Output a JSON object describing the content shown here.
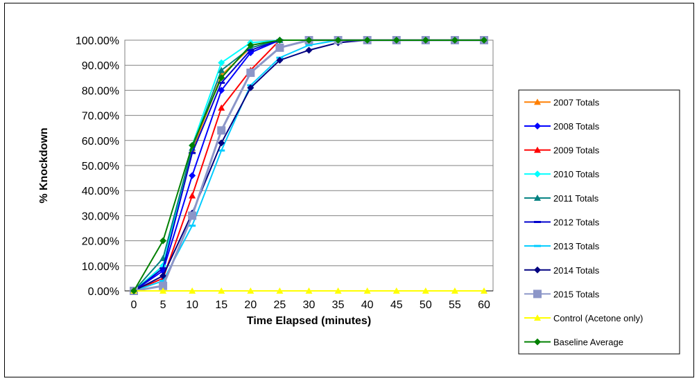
{
  "chart_data": {
    "type": "line",
    "title": "",
    "xlabel": "Time Elapsed (minutes)",
    "ylabel": "% Knockdown",
    "x": [
      0,
      5,
      10,
      15,
      20,
      25,
      30,
      35,
      40,
      45,
      50,
      55,
      60
    ],
    "x_tick_labels": [
      "0",
      "5",
      "10",
      "15",
      "20",
      "25",
      "30",
      "35",
      "40",
      "45",
      "50",
      "55",
      "60"
    ],
    "y_tick_labels": [
      "0.00%",
      "10.00%",
      "20.00%",
      "30.00%",
      "40.00%",
      "50.00%",
      "60.00%",
      "70.00%",
      "80.00%",
      "90.00%",
      "100.00%"
    ],
    "ylim": [
      0,
      100
    ],
    "grid": "horizontal",
    "legend_position": "right",
    "series": [
      {
        "name": "2007 Totals",
        "color": "#ff7f00",
        "marker": "triangle",
        "values": [
          0,
          10,
          56,
          86,
          97,
          100,
          100,
          100,
          100,
          100,
          100,
          100,
          100
        ]
      },
      {
        "name": "2008 Totals",
        "color": "#0000ff",
        "marker": "diamond",
        "values": [
          0,
          8,
          46,
          80,
          95,
          100,
          100,
          100,
          100,
          100,
          100,
          100,
          100
        ]
      },
      {
        "name": "2009 Totals",
        "color": "#ff0000",
        "marker": "triangle",
        "values": [
          0,
          5,
          38,
          73,
          88,
          100,
          100,
          100,
          100,
          100,
          100,
          100,
          100
        ]
      },
      {
        "name": "2010 Totals",
        "color": "#00ffff",
        "marker": "diamond",
        "values": [
          0,
          10,
          58,
          91,
          99,
          100,
          100,
          100,
          100,
          100,
          100,
          100,
          100
        ]
      },
      {
        "name": "2011 Totals",
        "color": "#008080",
        "marker": "triangle",
        "values": [
          0,
          13,
          57,
          88,
          97,
          100,
          100,
          100,
          100,
          100,
          100,
          100,
          100
        ]
      },
      {
        "name": "2012 Totals",
        "color": "#0000cc",
        "marker": "dash",
        "values": [
          0,
          9,
          55,
          83,
          96,
          100,
          100,
          100,
          100,
          100,
          100,
          100,
          100
        ]
      },
      {
        "name": "2013 Totals",
        "color": "#00ccff",
        "marker": "dash",
        "values": [
          0,
          4,
          26,
          56,
          82,
          93,
          98,
          100,
          100,
          100,
          100,
          100,
          100
        ]
      },
      {
        "name": "2014 Totals",
        "color": "#000080",
        "marker": "diamond",
        "values": [
          0,
          6,
          31,
          59,
          81,
          92,
          96,
          99,
          100,
          100,
          100,
          100,
          100
        ]
      },
      {
        "name": "2015 Totals",
        "color": "#8c96c8",
        "marker": "square",
        "values": [
          0,
          2,
          30,
          64,
          87,
          97,
          100,
          100,
          100,
          100,
          100,
          100,
          100
        ]
      },
      {
        "name": "Control (Acetone only)",
        "color": "#ffff00",
        "marker": "triangle",
        "values": [
          0,
          0,
          0,
          0,
          0,
          0,
          0,
          0,
          0,
          0,
          0,
          0,
          0
        ]
      },
      {
        "name": "Baseline Average",
        "color": "#008000",
        "marker": "diamond",
        "values": [
          0,
          20,
          58,
          85,
          98,
          100,
          100,
          100,
          100,
          100,
          100,
          100,
          100
        ]
      }
    ]
  }
}
